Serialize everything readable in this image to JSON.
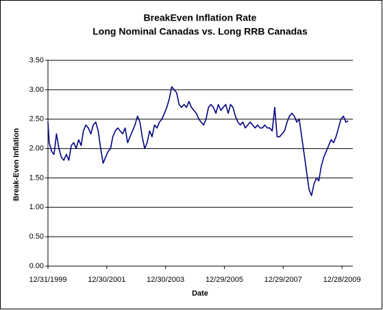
{
  "chart_data": {
    "type": "line",
    "title": "BreakEven Inflation Rate",
    "subtitle": "Long Nominal Canadas vs. Long RRB Canadas",
    "x_label": "Date",
    "y_label": "Break-Even Inflation",
    "x": [
      "1999-12-31",
      "2000-01-15",
      "2000-02-15",
      "2000-03-15",
      "2000-04-15",
      "2000-05-15",
      "2000-06-15",
      "2000-07-15",
      "2000-08-15",
      "2000-09-15",
      "2000-10-15",
      "2000-11-15",
      "2000-12-15",
      "2001-01-15",
      "2001-02-15",
      "2001-03-15",
      "2001-04-15",
      "2001-05-15",
      "2001-06-15",
      "2001-07-15",
      "2001-08-15",
      "2001-09-15",
      "2001-10-15",
      "2001-11-15",
      "2001-12-15",
      "2002-01-15",
      "2002-02-15",
      "2002-03-15",
      "2002-04-15",
      "2002-05-15",
      "2002-06-15",
      "2002-07-15",
      "2002-08-15",
      "2002-09-15",
      "2002-10-15",
      "2002-11-15",
      "2002-12-15",
      "2003-01-15",
      "2003-02-15",
      "2003-03-15",
      "2003-04-15",
      "2003-05-15",
      "2003-06-15",
      "2003-07-15",
      "2003-08-15",
      "2003-09-15",
      "2003-10-15",
      "2003-11-15",
      "2003-12-15",
      "2004-01-15",
      "2004-02-15",
      "2004-03-15",
      "2004-04-15",
      "2004-05-15",
      "2004-06-15",
      "2004-07-15",
      "2004-08-15",
      "2004-09-15",
      "2004-10-15",
      "2004-11-15",
      "2004-12-15",
      "2005-01-15",
      "2005-02-15",
      "2005-03-15",
      "2005-04-15",
      "2005-05-15",
      "2005-06-15",
      "2005-07-15",
      "2005-08-15",
      "2005-09-15",
      "2005-10-15",
      "2005-11-15",
      "2005-12-15",
      "2006-01-15",
      "2006-02-15",
      "2006-03-15",
      "2006-04-15",
      "2006-05-15",
      "2006-06-15",
      "2006-07-15",
      "2006-08-15",
      "2006-09-15",
      "2006-10-15",
      "2006-11-15",
      "2006-12-15",
      "2007-01-15",
      "2007-02-15",
      "2007-03-15",
      "2007-04-15",
      "2007-05-15",
      "2007-06-15",
      "2007-07-15",
      "2007-08-15",
      "2007-09-15",
      "2007-10-15",
      "2007-11-15",
      "2007-12-15",
      "2008-01-15",
      "2008-02-15",
      "2008-03-15",
      "2008-04-15",
      "2008-05-15",
      "2008-06-15",
      "2008-07-15",
      "2008-08-15",
      "2008-09-15",
      "2008-10-15",
      "2008-11-15",
      "2008-12-15",
      "2009-01-15",
      "2009-02-15",
      "2009-03-15",
      "2009-04-15",
      "2009-05-15",
      "2009-06-15",
      "2009-07-15",
      "2009-08-15",
      "2009-09-15",
      "2009-10-15",
      "2009-11-15",
      "2009-12-15",
      "2010-01-15",
      "2010-02-15",
      "2010-03-15"
    ],
    "series": [
      {
        "name": "Break-Even Inflation",
        "color": "#000080",
        "values": [
          2.45,
          2.1,
          1.95,
          1.9,
          2.25,
          2.0,
          1.85,
          1.8,
          1.9,
          1.8,
          2.05,
          2.1,
          2.0,
          2.15,
          2.05,
          2.3,
          2.4,
          2.35,
          2.25,
          2.4,
          2.45,
          2.3,
          2.0,
          1.75,
          1.85,
          1.95,
          2.0,
          2.2,
          2.3,
          2.35,
          2.3,
          2.25,
          2.35,
          2.1,
          2.2,
          2.3,
          2.4,
          2.55,
          2.45,
          2.2,
          2.0,
          2.1,
          2.3,
          2.2,
          2.4,
          2.35,
          2.45,
          2.5,
          2.6,
          2.7,
          2.85,
          3.05,
          3.0,
          2.95,
          2.75,
          2.7,
          2.75,
          2.7,
          2.8,
          2.7,
          2.65,
          2.6,
          2.5,
          2.45,
          2.4,
          2.5,
          2.7,
          2.75,
          2.7,
          2.6,
          2.75,
          2.65,
          2.7,
          2.75,
          2.6,
          2.75,
          2.7,
          2.55,
          2.45,
          2.4,
          2.45,
          2.35,
          2.4,
          2.45,
          2.4,
          2.35,
          2.4,
          2.35,
          2.35,
          2.4,
          2.35,
          2.35,
          2.3,
          2.7,
          2.2,
          2.2,
          2.25,
          2.3,
          2.45,
          2.55,
          2.6,
          2.55,
          2.45,
          2.5,
          2.2,
          1.9,
          1.6,
          1.3,
          1.2,
          1.4,
          1.5,
          1.45,
          1.7,
          1.85,
          1.95,
          2.05,
          2.15,
          2.1,
          2.2,
          2.35,
          2.5,
          2.55,
          2.45,
          2.47
        ]
      }
    ],
    "xlim": [
      "1999-12-31",
      "2010-05-12"
    ],
    "xticks": [
      {
        "value": "1999-12-31",
        "label": "12/31/1999"
      },
      {
        "value": "2001-12-30",
        "label": "12/30/2001"
      },
      {
        "value": "2003-12-30",
        "label": "12/30/2003"
      },
      {
        "value": "2005-12-29",
        "label": "12/29/2005"
      },
      {
        "value": "2007-12-29",
        "label": "12/29/2007"
      },
      {
        "value": "2009-12-28",
        "label": "12/28/2009"
      }
    ],
    "ylim": [
      0,
      3.5
    ],
    "yticks": [
      {
        "value": 0,
        "label": "0.00"
      },
      {
        "value": 0.5,
        "label": "0.50"
      },
      {
        "value": 1,
        "label": "1.00"
      },
      {
        "value": 1.5,
        "label": "1.50"
      },
      {
        "value": 2,
        "label": "2.00"
      },
      {
        "value": 2.5,
        "label": "2.50"
      },
      {
        "value": 3,
        "label": "3.00"
      },
      {
        "value": 3.5,
        "label": "3.50"
      }
    ],
    "grid": true
  }
}
